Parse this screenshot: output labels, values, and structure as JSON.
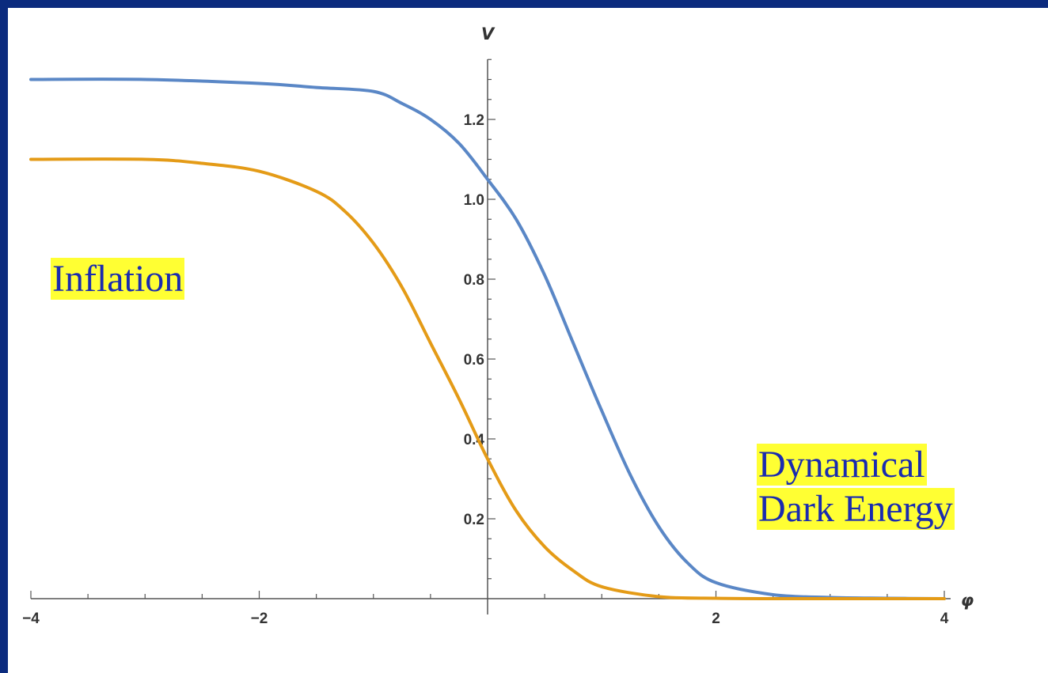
{
  "chart_data": {
    "type": "line",
    "xlabel": "φ",
    "ylabel": "V",
    "xlim": [
      -4,
      4
    ],
    "ylim": [
      0,
      1.35
    ],
    "xticks": [
      {
        "value": -4,
        "label": "−4"
      },
      {
        "value": -2,
        "label": "−2"
      },
      {
        "value": 2,
        "label": "2"
      },
      {
        "value": 4,
        "label": "4"
      }
    ],
    "yticks": [
      {
        "value": 0.2,
        "label": "0.2"
      },
      {
        "value": 0.4,
        "label": "0.4"
      },
      {
        "value": 0.6,
        "label": "0.6"
      },
      {
        "value": 0.8,
        "label": "0.8"
      },
      {
        "value": 1.0,
        "label": "1.0"
      },
      {
        "value": 1.2,
        "label": "1.2"
      }
    ],
    "grid": false,
    "series": [
      {
        "color": "#5a87c6",
        "x": [
          -4,
          -3,
          -2,
          -1.5,
          -1,
          -0.75,
          -0.5,
          -0.25,
          0,
          0.25,
          0.5,
          0.75,
          1,
          1.25,
          1.5,
          1.75,
          2,
          2.5,
          3,
          3.5,
          4
        ],
        "y": [
          1.3,
          1.3,
          1.29,
          1.28,
          1.27,
          1.24,
          1.2,
          1.14,
          1.05,
          0.95,
          0.81,
          0.64,
          0.47,
          0.31,
          0.18,
          0.09,
          0.04,
          0.01,
          0.003,
          0.001,
          0.0
        ]
      },
      {
        "color": "#e49b17",
        "x": [
          -4,
          -3,
          -2.5,
          -2,
          -1.5,
          -1.25,
          -1,
          -0.75,
          -0.5,
          -0.25,
          0,
          0.25,
          0.5,
          0.75,
          1,
          1.5,
          2,
          2.5,
          3,
          3.5,
          4
        ],
        "y": [
          1.1,
          1.1,
          1.09,
          1.07,
          1.02,
          0.97,
          0.89,
          0.78,
          0.64,
          0.5,
          0.35,
          0.22,
          0.13,
          0.07,
          0.03,
          0.005,
          0.001,
          0,
          0,
          0,
          0
        ]
      }
    ]
  },
  "annotations": {
    "inflation": "Inflation",
    "dynamical_line1": "Dynamical",
    "dynamical_line2": "Dark Energy"
  },
  "colors": {
    "background_border": "#0b2b7e",
    "annotation_text": "#1a2bb0",
    "annotation_highlight": "#ffff33"
  }
}
